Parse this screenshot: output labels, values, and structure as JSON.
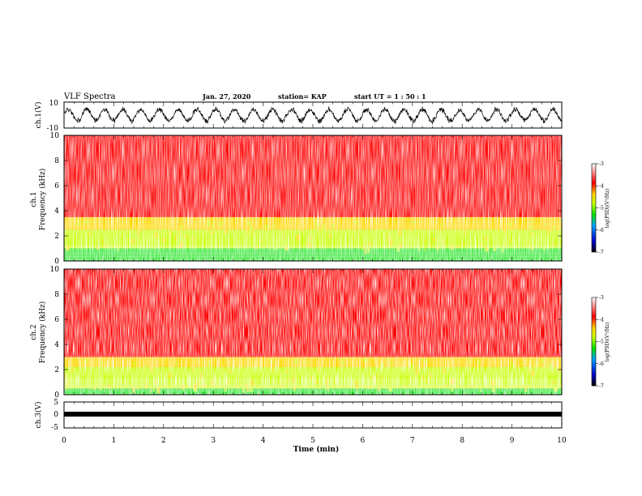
{
  "header": {
    "title": "VLF Spectra",
    "date": "Jan. 27, 2020",
    "station": "station= KAP",
    "start": "start  UT =   1 : 50 : 1"
  },
  "chart_data": [
    {
      "type": "line",
      "panel": "ch1_waveform",
      "ylabel": "ch.1(V)",
      "ylim": [
        -10,
        10
      ],
      "yticks": [
        "10",
        "-10"
      ],
      "xlim": [
        0,
        10
      ],
      "signal": "noisy oscillation, amplitude ~6 V, centered near 0"
    },
    {
      "type": "heatmap",
      "panel": "ch1_spectrogram",
      "ylabel_top": "ch.1",
      "ylabel": "Frequency (kHz)",
      "ylim": [
        0,
        10
      ],
      "yticks": [
        "0",
        "2",
        "4",
        "6",
        "8",
        "10"
      ],
      "xlim": [
        0,
        9.8
      ],
      "bands": [
        {
          "from_khz": 0,
          "to_khz": 1.0,
          "level": -5.5
        },
        {
          "from_khz": 1.0,
          "to_khz": 2.5,
          "level": -4.6
        },
        {
          "from_khz": 2.5,
          "to_khz": 3.5,
          "level": -4.0
        },
        {
          "from_khz": 3.5,
          "to_khz": 10,
          "level": -3.3
        }
      ],
      "colorbar": {
        "label": "log(PSD)(V²/Hz)",
        "range": [
          -7,
          -3
        ],
        "ticks": [
          "-3",
          "-4",
          "-5",
          "-6",
          "-7"
        ]
      }
    },
    {
      "type": "heatmap",
      "panel": "ch2_spectrogram",
      "ylabel_top": "ch.2",
      "ylabel": "Frequency (kHz)",
      "ylim": [
        0,
        10
      ],
      "yticks": [
        "0",
        "2",
        "4",
        "6",
        "8",
        "10"
      ],
      "xlim": [
        0,
        9.8
      ],
      "bands": [
        {
          "from_khz": 0,
          "to_khz": 0.5,
          "level": -5.5
        },
        {
          "from_khz": 0.5,
          "to_khz": 2.2,
          "level": -5.0
        },
        {
          "from_khz": 2.2,
          "to_khz": 3.0,
          "level": -4.4
        },
        {
          "from_khz": 3.0,
          "to_khz": 10,
          "level": -3.3
        }
      ],
      "colorbar": {
        "label": "log(PSD)(V²/Hz)",
        "range": [
          -7,
          -3
        ],
        "ticks": [
          "-3",
          "-4",
          "-5",
          "-6",
          "-7"
        ]
      }
    },
    {
      "type": "line",
      "panel": "ch3_waveform",
      "ylabel": "ch.3(V)",
      "ylim": [
        -5,
        5
      ],
      "yticks": [
        "5",
        "0",
        "-5"
      ],
      "xlim": [
        0,
        10
      ],
      "signal": "flat dense trace near 0 V"
    }
  ],
  "x_axis": {
    "label": "Time (min)",
    "range": [
      0,
      10
    ],
    "ticks": [
      "0",
      "1",
      "2",
      "3",
      "4",
      "5",
      "6",
      "7",
      "8",
      "9",
      "10"
    ]
  },
  "colors": {
    "background": "#ffffff",
    "axis": "#000000",
    "colormap": [
      "#000000",
      "#0000c8",
      "#00a0ff",
      "#00e000",
      "#c8ff00",
      "#ffd800",
      "#ff0000",
      "#ffffff"
    ]
  }
}
